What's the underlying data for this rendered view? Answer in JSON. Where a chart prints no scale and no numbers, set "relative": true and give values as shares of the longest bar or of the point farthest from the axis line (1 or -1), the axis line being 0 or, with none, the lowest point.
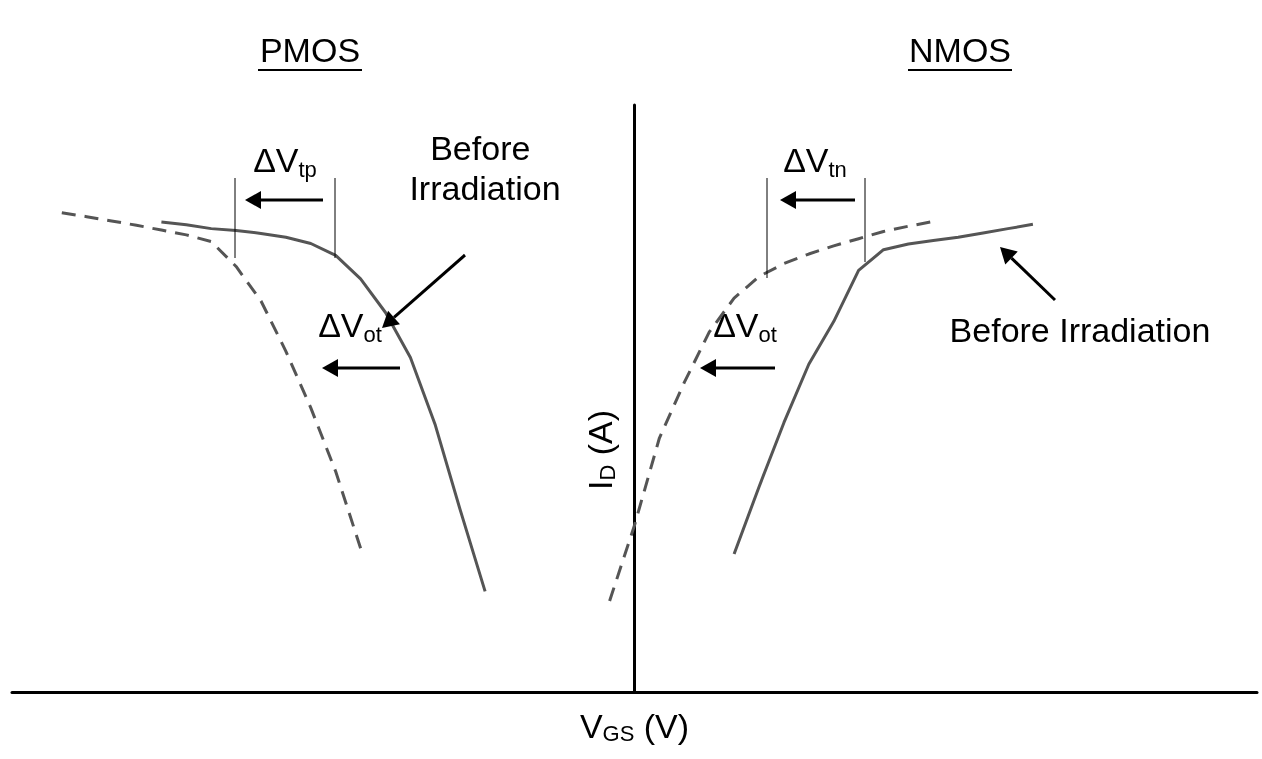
{
  "chart_data": {
    "type": "line",
    "relative": true,
    "grid": false,
    "xlabel": "V$_{GS}$ (V)",
    "ylabel": "I$_{D}$ (A)",
    "annotations": [
      "PMOS",
      "NMOS",
      "ΔV$_{tp}$",
      "Before Irradiation",
      "ΔV$_{ot}$",
      "ΔV$_{tn}$",
      "ΔV$_{ot}$",
      "Before Irradiation"
    ],
    "categories": [
      null,
      null,
      null,
      null,
      null,
      null,
      null,
      null,
      null,
      null,
      null,
      null,
      null,
      null,
      null,
      null,
      null,
      null,
      null,
      null,
      null,
      null,
      null,
      null,
      null,
      null,
      null,
      null,
      null,
      null,
      null,
      null,
      null,
      null,
      null,
      null,
      null,
      null,
      null,
      null,
      null,
      null,
      null,
      null,
      null,
      null,
      null,
      null,
      null,
      null,
      null
    ],
    "series": [
      {
        "color": "#555555",
        "line_style": "solid",
        "values": [
          null,
          null,
          null,
          null,
          null,
          null,
          0.981,
          0.975,
          0.967,
          0.963,
          0.957,
          0.949,
          0.936,
          0.911,
          0.862,
          0.792,
          0.698,
          0.557,
          0.38,
          0.21,
          null,
          null,
          null,
          null,
          null,
          null,
          null,
          null,
          null,
          null,
          null,
          null,
          null,
          null,
          null,
          null,
          null,
          null,
          null,
          null,
          null,
          null,
          null,
          null,
          null,
          null,
          null,
          null,
          null,
          null,
          null
        ]
      },
      {
        "color": "#555555",
        "line_style": "dashed",
        "values": [
          null,
          null,
          1,
          0.992,
          0.983,
          0.974,
          0.964,
          0.954,
          0.94,
          0.888,
          0.816,
          0.711,
          0.593,
          0.46,
          0.3,
          null,
          null,
          null,
          null,
          null,
          null,
          null,
          null,
          null,
          null,
          null,
          null,
          null,
          null,
          null,
          null,
          null,
          null,
          null,
          null,
          null,
          null,
          null,
          null,
          null,
          null,
          null,
          null,
          null,
          null,
          null,
          null,
          null,
          null,
          null,
          null
        ]
      },
      {
        "color": "#555555",
        "line_style": "solid",
        "values": [
          null,
          null,
          null,
          null,
          null,
          null,
          null,
          null,
          null,
          null,
          null,
          null,
          null,
          null,
          null,
          null,
          null,
          null,
          null,
          null,
          null,
          null,
          null,
          null,
          null,
          null,
          null,
          null,
          null,
          0.288,
          0.428,
          0.562,
          0.684,
          0.773,
          0.88,
          0.923,
          0.935,
          0.942,
          0.949,
          0.958,
          0.967,
          0.976,
          null,
          null,
          null,
          null,
          null,
          null,
          null,
          null,
          null
        ]
      },
      {
        "color": "#555555",
        "line_style": "dashed",
        "values": [
          null,
          null,
          null,
          null,
          null,
          null,
          null,
          null,
          null,
          null,
          null,
          null,
          null,
          null,
          null,
          null,
          null,
          null,
          null,
          null,
          null,
          null,
          null,
          null,
          0.19,
          0.348,
          0.53,
          0.646,
          0.751,
          0.822,
          0.867,
          0.894,
          0.914,
          0.931,
          0.946,
          0.961,
          0.972,
          0.982,
          null,
          null,
          null,
          null,
          null,
          null,
          null,
          null,
          null,
          null,
          null,
          null,
          null
        ]
      }
    ]
  }
}
